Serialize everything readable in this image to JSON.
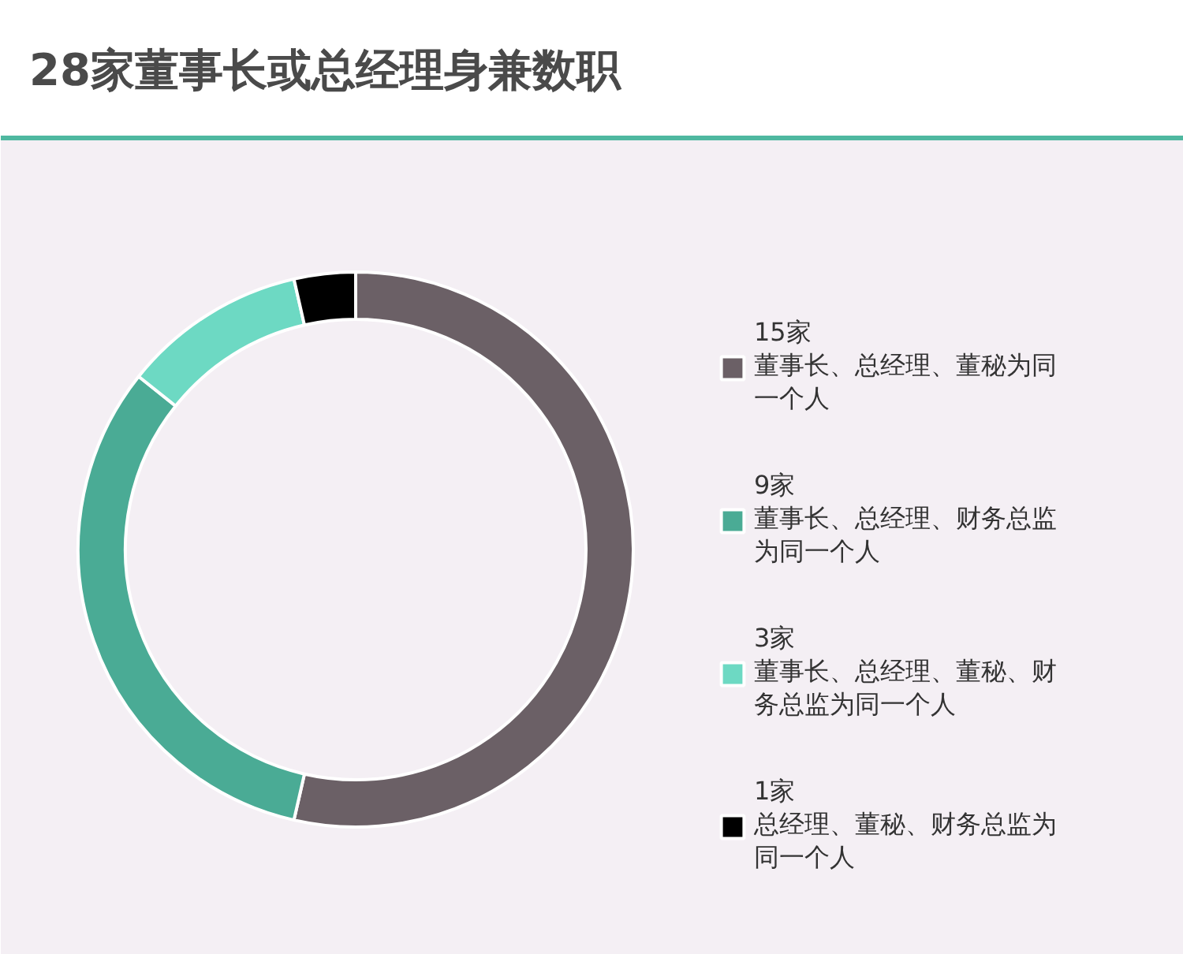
{
  "chart_data": {
    "type": "donut",
    "title": "28家董事长或总经理身兼数职",
    "categories": [
      "董事长、总经理、董秘为同一个人",
      "董事长、总经理、财务总监为同一个人",
      "董事长、总经理、董秘、财务总监为同一个人",
      "总经理、董秘、财务总监为同一个人"
    ],
    "values": [
      15,
      9,
      3,
      1
    ],
    "value_labels": [
      "15家",
      "9家",
      "3家",
      "1家"
    ],
    "colors": [
      "#6b6066",
      "#4aab95",
      "#6dd9c3",
      "#000000"
    ],
    "legend": "right"
  }
}
